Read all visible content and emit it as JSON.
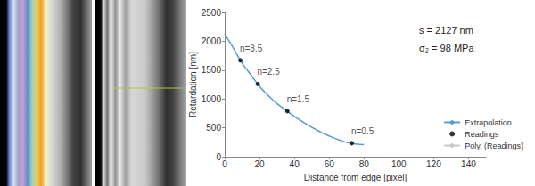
{
  "chart_data": {
    "type": "line",
    "x_label": "Distance from edge [pixel]",
    "y_label": "Retardation [nm]",
    "xlim": [
      0,
      150
    ],
    "xticks": [
      0,
      20,
      40,
      60,
      80,
      100,
      120,
      140
    ],
    "ylim": [
      0,
      2500
    ],
    "yticks": [
      0,
      500,
      1000,
      1500,
      2000,
      2500
    ],
    "grid": false,
    "legend": "right",
    "annotations": [
      "s = 2127 nm",
      "σ₂ = 98 MPa"
    ],
    "series": [
      {
        "name": "Extrapolation",
        "type": "line",
        "color": "#5b9bd5",
        "line_style": "solid",
        "x": [
          0,
          5,
          10,
          15,
          20,
          25,
          30,
          35,
          40,
          45,
          50,
          55,
          60,
          65,
          70,
          75,
          80
        ],
        "values": [
          2127,
          1880,
          1620,
          1420,
          1220,
          1060,
          920,
          810,
          700,
          600,
          510,
          430,
          360,
          300,
          250,
          220,
          210
        ]
      },
      {
        "name": "Readings",
        "type": "scatter",
        "color": "#000000",
        "marker": "circle",
        "x": [
          9,
          19,
          36,
          73
        ],
        "values": [
          1670,
          1260,
          790,
          235
        ],
        "labels": [
          "n=3.5",
          "n=2.5",
          "n=1.5",
          "n=0.5"
        ]
      },
      {
        "name": "Poly. (Readings)",
        "type": "line",
        "color": "#c8c8c8",
        "line_style": "solid",
        "x": [
          10,
          15,
          20,
          25,
          30,
          35,
          40,
          45,
          50,
          55,
          60,
          65,
          70,
          75
        ],
        "values": [
          1620,
          1420,
          1220,
          1060,
          920,
          810,
          700,
          600,
          510,
          430,
          360,
          300,
          250,
          220
        ]
      }
    ]
  }
}
